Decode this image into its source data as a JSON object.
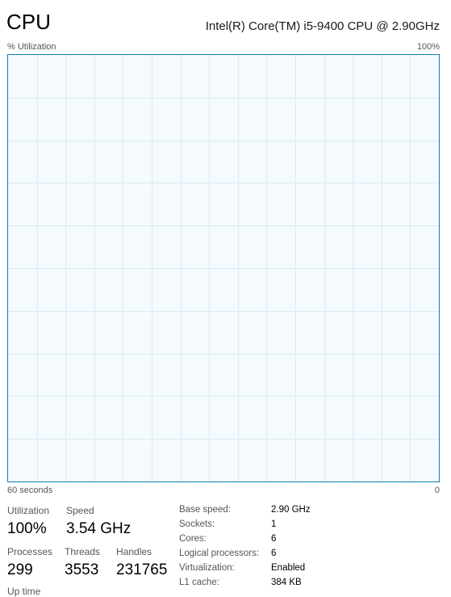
{
  "header": {
    "title": "CPU",
    "cpu_model": "Intel(R) Core(TM) i5-9400 CPU @ 2.90GHz"
  },
  "graph": {
    "y_label": "% Utilization",
    "y_max_label": "100%",
    "x_left_label": "60 seconds",
    "x_right_label": "0",
    "gridline_color": "#d9eaf4",
    "border_color": "#117dbb",
    "background_color": "#f4fafd"
  },
  "stats": {
    "utilization": {
      "label": "Utilization",
      "value": "100%"
    },
    "speed": {
      "label": "Speed",
      "value": "3.54 GHz"
    },
    "processes": {
      "label": "Processes",
      "value": "299"
    },
    "threads": {
      "label": "Threads",
      "value": "3553"
    },
    "handles": {
      "label": "Handles",
      "value": "231765"
    },
    "uptime": {
      "label": "Up time"
    }
  },
  "details": [
    {
      "key": "Base speed:",
      "value": "2.90 GHz"
    },
    {
      "key": "Sockets:",
      "value": "1"
    },
    {
      "key": "Cores:",
      "value": "6"
    },
    {
      "key": "Logical processors:",
      "value": "6"
    },
    {
      "key": "Virtualization:",
      "value": "Enabled"
    },
    {
      "key": "L1 cache:",
      "value": "384 KB"
    }
  ]
}
